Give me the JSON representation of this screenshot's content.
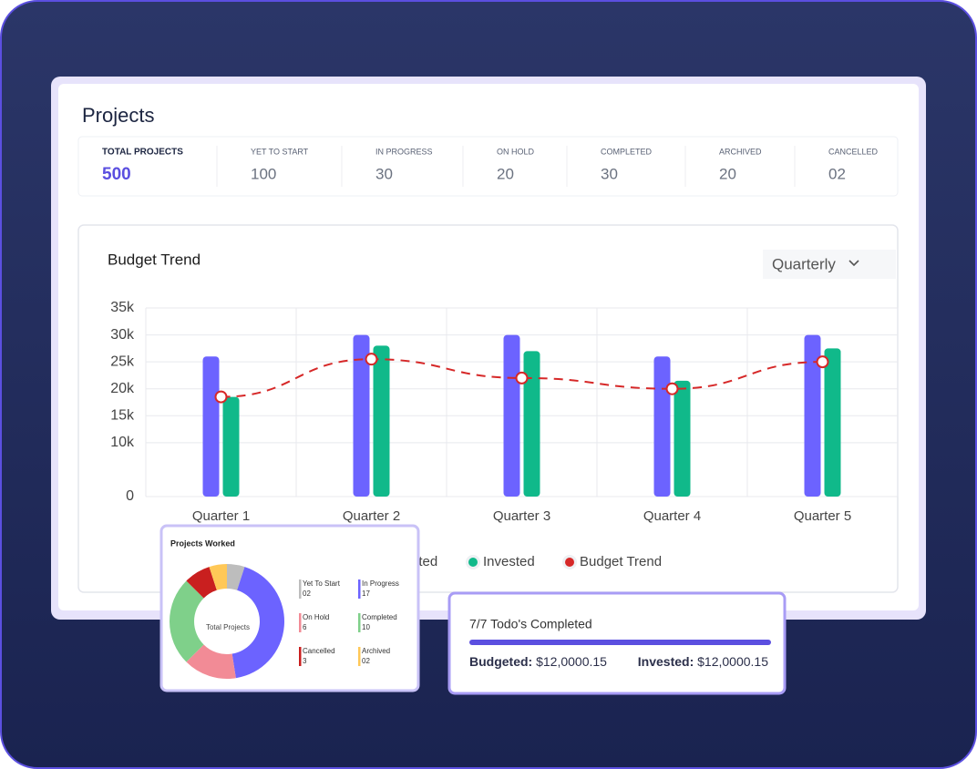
{
  "header": {
    "title": "Projects"
  },
  "stats": [
    {
      "label": "TOTAL PROJECTS",
      "value": "500"
    },
    {
      "label": "YET TO START",
      "value": "100"
    },
    {
      "label": "IN PROGRESS",
      "value": "30"
    },
    {
      "label": "ON HOLD",
      "value": "20"
    },
    {
      "label": "COMPLETED",
      "value": "30"
    },
    {
      "label": "ARCHIVED",
      "value": "20"
    },
    {
      "label": "CANCELLED",
      "value": "02"
    }
  ],
  "period": "Quarterly",
  "chart_data": [
    {
      "type": "bar",
      "title": "Budget Trend",
      "categories": [
        "Quarter 1",
        "Quarter 2",
        "Quarter 3",
        "Quarter 4",
        "Quarter 5"
      ],
      "series": [
        {
          "name": "Budgeted",
          "color": "#6c63ff",
          "values": [
            26000,
            30000,
            30000,
            26000,
            30000
          ]
        },
        {
          "name": "Invested",
          "color": "#10b98a",
          "values": [
            18500,
            28000,
            27000,
            21500,
            27500
          ]
        },
        {
          "name": "Budget Trend",
          "type": "line",
          "color": "#d62828",
          "values": [
            18500,
            25500,
            22000,
            20000,
            25000
          ]
        }
      ],
      "ylim": [
        0,
        35000
      ],
      "yticks": [
        {
          "value": 0,
          "label": "0"
        },
        {
          "value": 10000,
          "label": "10k"
        },
        {
          "value": 15000,
          "label": "15k"
        },
        {
          "value": 20000,
          "label": "20k"
        },
        {
          "value": 25000,
          "label": "25k"
        },
        {
          "value": 30000,
          "label": "30k"
        },
        {
          "value": 35000,
          "label": "35k"
        }
      ],
      "grid": true
    },
    {
      "type": "pie",
      "title": "Projects Worked",
      "center_label": "Total Projects",
      "categories": [
        "Yet To Start",
        "In Progress",
        "On Hold",
        "Completed",
        "Cancelled",
        "Archived"
      ],
      "values": [
        2,
        17,
        6,
        10,
        3,
        2
      ],
      "value_labels": [
        "02",
        "17",
        "6",
        "10",
        "3",
        "02"
      ],
      "colors": [
        "#bdbdbd",
        "#6c63ff",
        "#f28b96",
        "#7fd08a",
        "#c91f1f",
        "#ffc857"
      ]
    }
  ],
  "todo": {
    "summary": "7/7 Todo's Completed",
    "budgeted_label": "Budgeted:",
    "budgeted_value": "$12,0000.15",
    "invested_label": "Invested:",
    "invested_value": "$12,0000.15"
  }
}
